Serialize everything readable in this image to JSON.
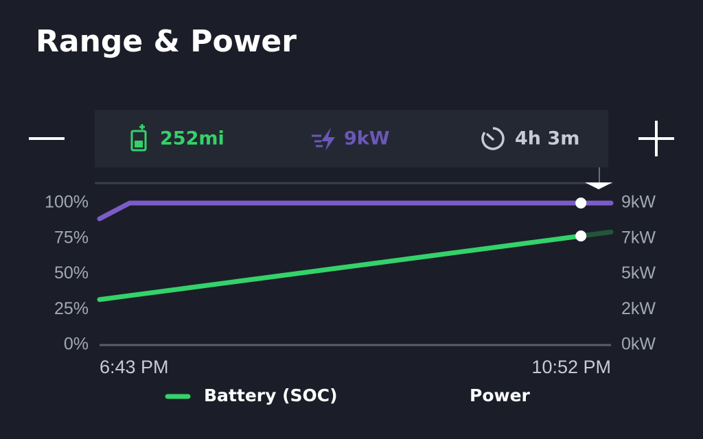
{
  "title": "Range & Power",
  "stats": {
    "range": "252mi",
    "power": "9kW",
    "time": "4h 3m"
  },
  "chart_data": {
    "type": "line",
    "categories": [
      "6:43 PM",
      null,
      null,
      null,
      null,
      null,
      null,
      null,
      null,
      null,
      null,
      null,
      null,
      null,
      null,
      null,
      null,
      "10:52 PM"
    ],
    "series": [
      {
        "name": "Battery (SOC)",
        "color": "#34d26a",
        "values": [
          32,
          34.8,
          37.6,
          40.4,
          43.2,
          46,
          48.8,
          51.6,
          54.4,
          57.2,
          60,
          62.8,
          65.6,
          68.4,
          71.2,
          74,
          76.8,
          79.6
        ]
      },
      {
        "name": "Power",
        "color": "#7b5cc8",
        "axis": "y2",
        "values": [
          8,
          9,
          9,
          9,
          9,
          9,
          9,
          9,
          9,
          9,
          9,
          9,
          9,
          9,
          9,
          9,
          9,
          9
        ]
      }
    ],
    "ylim": [
      0,
      100
    ],
    "yticks": [
      {
        "value": 0,
        "label": "0%"
      },
      {
        "value": 25,
        "label": "25%"
      },
      {
        "value": 50,
        "label": "50%"
      },
      {
        "value": 75,
        "label": "75%"
      },
      {
        "value": 100,
        "label": "100%"
      }
    ],
    "y2lim": [
      0,
      9
    ],
    "y2ticks": [
      {
        "value": 0,
        "label": "0kW"
      },
      {
        "value": 2.25,
        "label": "2kW"
      },
      {
        "value": 4.5,
        "label": "5kW"
      },
      {
        "value": 6.75,
        "label": "7kW"
      },
      {
        "value": 9,
        "label": "9kW"
      }
    ],
    "grid": false
  }
}
